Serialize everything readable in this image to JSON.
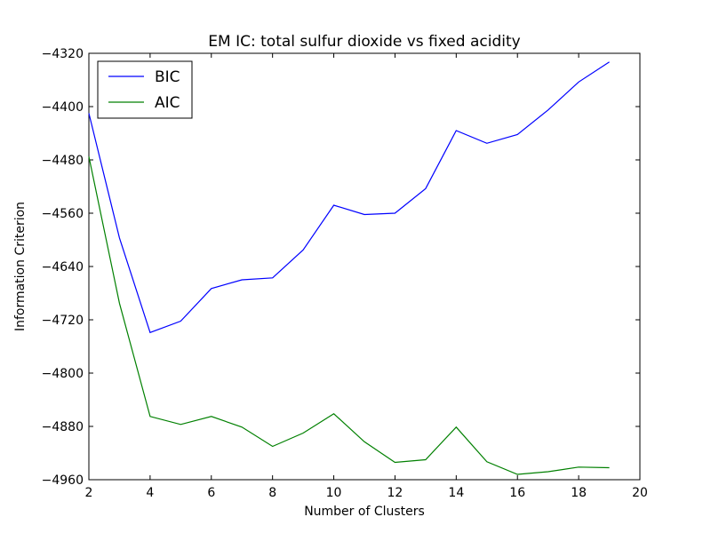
{
  "chart_data": {
    "type": "line",
    "title": "EM IC: total sulfur dioxide vs fixed acidity",
    "xlabel": "Number of Clusters",
    "ylabel": "Information Criterion",
    "xlim": [
      2,
      20
    ],
    "ylim": [
      -4960,
      -4320
    ],
    "xticks": [
      2,
      4,
      6,
      8,
      10,
      12,
      14,
      16,
      18,
      20
    ],
    "yticks": [
      -4320,
      -4400,
      -4480,
      -4560,
      -4640,
      -4720,
      -4800,
      -4880,
      -4960
    ],
    "x": [
      2,
      3,
      4,
      5,
      6,
      7,
      8,
      9,
      10,
      11,
      12,
      13,
      14,
      15,
      16,
      17,
      18,
      19
    ],
    "series": [
      {
        "name": "BIC",
        "color": "#0000ff",
        "values": [
          -4410,
          -4597,
          -4739,
          -4722,
          -4673,
          -4660,
          -4657,
          -4615,
          -4548,
          -4562,
          -4560,
          -4523,
          -4436,
          -4455,
          -4442,
          -4405,
          -4363,
          -4333
        ]
      },
      {
        "name": "AIC",
        "color": "#008000",
        "values": [
          -4475,
          -4695,
          -4865,
          -4877,
          -4865,
          -4881,
          -4910,
          -4890,
          -4861,
          -4903,
          -4934,
          -4930,
          -4881,
          -4933,
          -4952,
          -4948,
          -4941,
          -4942
        ]
      }
    ],
    "legend": {
      "position": "top-left"
    },
    "grid": false
  }
}
